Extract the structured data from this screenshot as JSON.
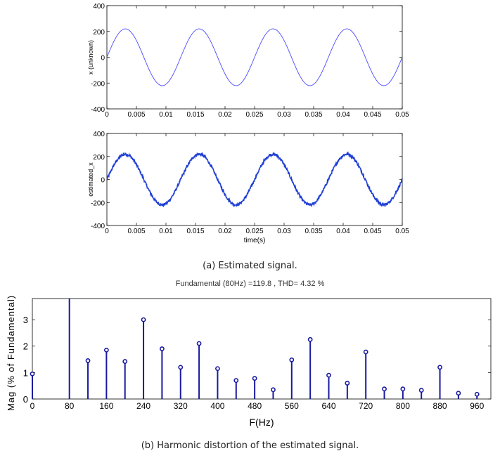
{
  "chart_data": [
    {
      "type": "line",
      "ylabel": "x (unknown)",
      "xlabel": "",
      "xlim": [
        0,
        0.05
      ],
      "ylim": [
        -400,
        400
      ],
      "x_ticks": [
        "0",
        "0.005",
        "0.01",
        "0.015",
        "0.02",
        "0.025",
        "0.03",
        "0.035",
        "0.04",
        "0.045",
        "0.05"
      ],
      "y_ticks": [
        "400",
        "200",
        "0",
        "-200",
        "-400"
      ],
      "series": [
        {
          "amplitude": 220,
          "frequency_hz": 80,
          "phase_deg": 0,
          "noise": 0
        }
      ],
      "color": "#4a4aff"
    },
    {
      "type": "line",
      "ylabel": "estimated_x",
      "xlabel": "time(s)",
      "xlim": [
        0,
        0.05
      ],
      "ylim": [
        -400,
        400
      ],
      "x_ticks": [
        "0",
        "0.005",
        "0.01",
        "0.015",
        "0.02",
        "0.025",
        "0.03",
        "0.035",
        "0.04",
        "0.045",
        "0.05"
      ],
      "y_ticks": [
        "400",
        "200",
        "0",
        "-200",
        "-400"
      ],
      "series": [
        {
          "amplitude": 220,
          "frequency_hz": 80,
          "phase_deg": 0,
          "noise": 12
        }
      ],
      "color": "#1f3fd6"
    },
    {
      "type": "bar",
      "title": "Fundamental (80Hz) =119.8 ,   THD= 4.32 %",
      "xlabel": "F(Hz)",
      "ylabel": "Mag (% of Fundamental)",
      "xlim": [
        0,
        990
      ],
      "ylim": [
        0,
        3.8
      ],
      "x_ticks": [
        "0",
        "80",
        "160",
        "240",
        "320",
        "400",
        "480",
        "560",
        "640",
        "720",
        "800",
        "880",
        "960"
      ],
      "y_ticks": [
        "0",
        "1",
        "2",
        "3"
      ],
      "frequencies": [
        0,
        80,
        120,
        160,
        200,
        240,
        280,
        320,
        360,
        400,
        440,
        480,
        520,
        560,
        600,
        640,
        680,
        720,
        760,
        800,
        840,
        880,
        920,
        960
      ],
      "values": [
        0.95,
        3.8,
        1.45,
        1.85,
        1.42,
        3.0,
        1.9,
        1.2,
        2.1,
        1.15,
        0.7,
        0.78,
        0.35,
        1.48,
        2.25,
        0.9,
        0.6,
        1.78,
        0.38,
        0.38,
        0.33,
        1.2,
        0.22,
        0.18
      ],
      "color": "#1a1aa0"
    }
  ],
  "captions": {
    "a": "(a) Estimated signal.",
    "b": "(b) Harmonic distortion of the estimated signal."
  }
}
